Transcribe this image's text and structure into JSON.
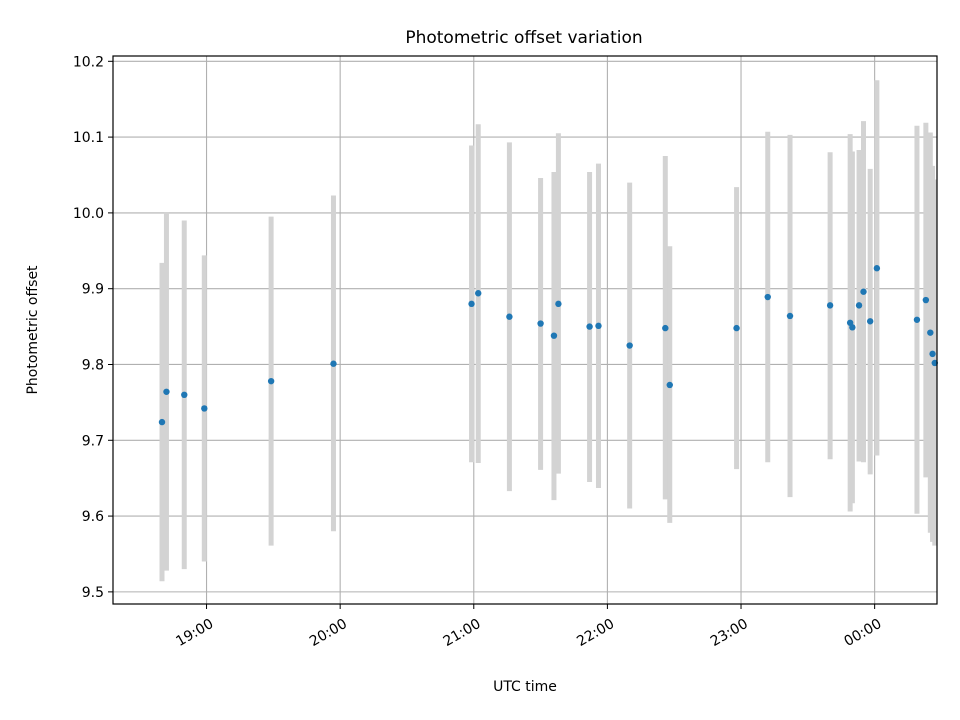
{
  "chart_data": {
    "type": "scatter",
    "title": "Photometric offset variation",
    "xlabel": "UTC time",
    "ylabel": "Photometric offset",
    "x_axis_kind": "time of day (UTC), spanning midnight",
    "xlim": [
      "18:18",
      "00:28"
    ],
    "ylim": [
      9.484,
      10.207
    ],
    "x_ticks": [
      "19:00",
      "20:00",
      "21:00",
      "22:00",
      "23:00",
      "00:00"
    ],
    "y_ticks": [
      "9.5",
      "9.6",
      "9.7",
      "9.8",
      "9.9",
      "10.0",
      "10.1",
      "10.2"
    ],
    "grid": true,
    "point_color": "#1f77b4",
    "errorbar_color": "#d3d3d3",
    "points": [
      {
        "t": "18:40",
        "y": 9.724,
        "ylow": 9.514,
        "yhigh": 9.934
      },
      {
        "t": "18:42",
        "y": 9.764,
        "ylow": 9.528,
        "yhigh": 10.0
      },
      {
        "t": "18:50",
        "y": 9.76,
        "ylow": 9.53,
        "yhigh": 9.99
      },
      {
        "t": "18:59",
        "y": 9.742,
        "ylow": 9.54,
        "yhigh": 9.944
      },
      {
        "t": "19:29",
        "y": 9.778,
        "ylow": 9.561,
        "yhigh": 9.995
      },
      {
        "t": "19:57",
        "y": 9.801,
        "ylow": 9.58,
        "yhigh": 10.023
      },
      {
        "t": "20:59",
        "y": 9.88,
        "ylow": 9.671,
        "yhigh": 10.089
      },
      {
        "t": "21:02",
        "y": 9.894,
        "ylow": 9.67,
        "yhigh": 10.117
      },
      {
        "t": "21:16",
        "y": 9.863,
        "ylow": 9.633,
        "yhigh": 10.093
      },
      {
        "t": "21:30",
        "y": 9.854,
        "ylow": 9.661,
        "yhigh": 10.046
      },
      {
        "t": "21:36",
        "y": 9.838,
        "ylow": 9.621,
        "yhigh": 10.054
      },
      {
        "t": "21:38",
        "y": 9.88,
        "ylow": 9.656,
        "yhigh": 10.105
      },
      {
        "t": "21:52",
        "y": 9.85,
        "ylow": 9.645,
        "yhigh": 10.054
      },
      {
        "t": "21:56",
        "y": 9.851,
        "ylow": 9.637,
        "yhigh": 10.065
      },
      {
        "t": "22:10",
        "y": 9.825,
        "ylow": 9.61,
        "yhigh": 10.04
      },
      {
        "t": "22:26",
        "y": 9.848,
        "ylow": 9.622,
        "yhigh": 10.075
      },
      {
        "t": "22:28",
        "y": 9.773,
        "ylow": 9.591,
        "yhigh": 9.956
      },
      {
        "t": "22:58",
        "y": 9.848,
        "ylow": 9.662,
        "yhigh": 10.034
      },
      {
        "t": "23:12",
        "y": 9.889,
        "ylow": 9.671,
        "yhigh": 10.107
      },
      {
        "t": "23:22",
        "y": 9.864,
        "ylow": 9.625,
        "yhigh": 10.103
      },
      {
        "t": "23:40",
        "y": 9.878,
        "ylow": 9.675,
        "yhigh": 10.08
      },
      {
        "t": "23:49",
        "y": 9.855,
        "ylow": 9.606,
        "yhigh": 10.104
      },
      {
        "t": "23:50",
        "y": 9.849,
        "ylow": 9.617,
        "yhigh": 10.081
      },
      {
        "t": "23:53",
        "y": 9.878,
        "ylow": 9.672,
        "yhigh": 10.083
      },
      {
        "t": "23:55",
        "y": 9.896,
        "ylow": 9.671,
        "yhigh": 10.121
      },
      {
        "t": "23:58",
        "y": 9.857,
        "ylow": 9.655,
        "yhigh": 10.058
      },
      {
        "t": "00:01",
        "y": 9.927,
        "ylow": 9.68,
        "yhigh": 10.175
      },
      {
        "t": "00:19",
        "y": 9.859,
        "ylow": 9.603,
        "yhigh": 10.115
      },
      {
        "t": "00:23",
        "y": 9.885,
        "ylow": 9.651,
        "yhigh": 10.119
      },
      {
        "t": "00:25",
        "y": 9.842,
        "ylow": 9.578,
        "yhigh": 10.106
      },
      {
        "t": "00:26",
        "y": 9.814,
        "ylow": 9.566,
        "yhigh": 10.062
      },
      {
        "t": "00:27",
        "y": 9.802,
        "ylow": 9.561,
        "yhigh": 10.044
      }
    ]
  }
}
